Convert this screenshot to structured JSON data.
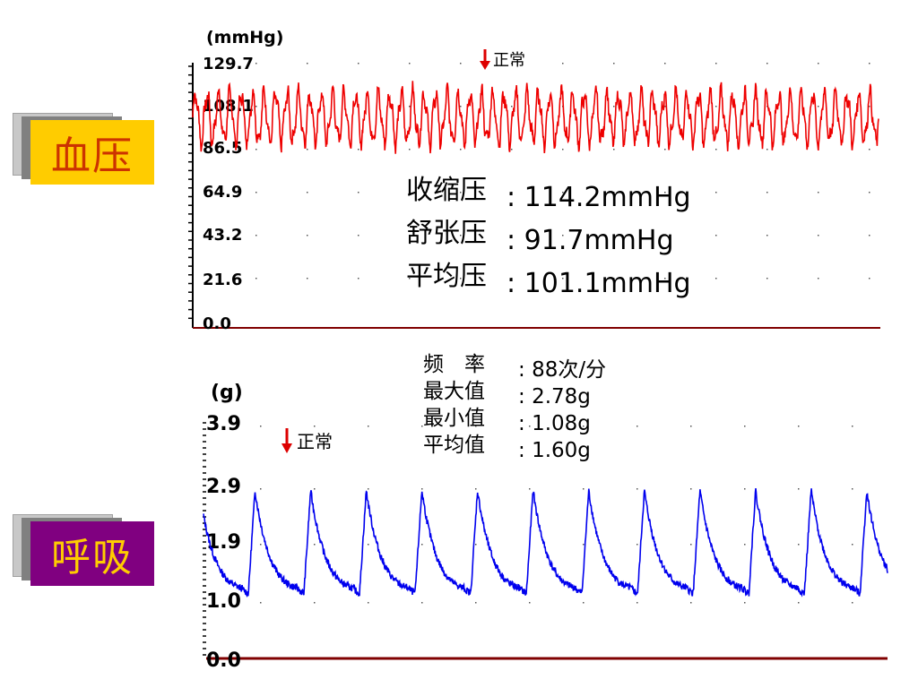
{
  "bp_label": {
    "text": "血压",
    "bg": "#ffcc00",
    "fg": "#cc3300"
  },
  "resp_label": {
    "text": "呼吸",
    "bg": "#800080",
    "fg": "#ffcc00"
  },
  "bp_panel": {
    "unit": "(mmHg)",
    "ticks": [
      "129.7",
      "108.1",
      "86.5",
      "64.9",
      "43.2",
      "21.6",
      "0.0"
    ],
    "status": "正常",
    "stats": [
      {
        "label": "收缩压",
        "value": "114.2mmHg"
      },
      {
        "label": "舒张压",
        "value": "91.7mmHg"
      },
      {
        "label": "平均压",
        "value": "101.1mmHg"
      }
    ],
    "trace_color": "#ee0000",
    "axis_color": "#800000"
  },
  "resp_panel": {
    "unit": "(g)",
    "ticks": [
      "3.9",
      "2.9",
      "1.9",
      "1.0",
      "0.0"
    ],
    "status": "正常",
    "stats": [
      {
        "label": "频　率",
        "value": "88次/分"
      },
      {
        "label": "最大值",
        "value": "2.78g"
      },
      {
        "label": "最小值",
        "value": "1.08g"
      },
      {
        "label": "平均值",
        "value": "1.60g"
      }
    ],
    "trace_color": "#0000ee",
    "axis_color": "#800000"
  },
  "chart_data": [
    {
      "type": "line",
      "name": "blood-pressure",
      "ylabel": "(mmHg)",
      "ylim": [
        0,
        129.7
      ],
      "ytick_values": [
        129.7,
        108.1,
        86.5,
        64.9,
        43.2,
        21.6,
        0.0
      ],
      "signal": {
        "baseline": 101,
        "amplitude_peak": 114.2,
        "amplitude_trough": 91.7,
        "cycles": 60
      },
      "annotation": "正常",
      "grid": "dotted"
    },
    {
      "type": "line",
      "name": "respiration",
      "ylabel": "(g)",
      "ylim": [
        0,
        3.9
      ],
      "ytick_values": [
        3.9,
        2.9,
        1.9,
        1.0,
        0.0
      ],
      "signal": {
        "max": 2.78,
        "min": 1.08,
        "mean": 1.6,
        "cycles": 12.3
      },
      "annotation": "正常",
      "grid": "dotted"
    }
  ]
}
